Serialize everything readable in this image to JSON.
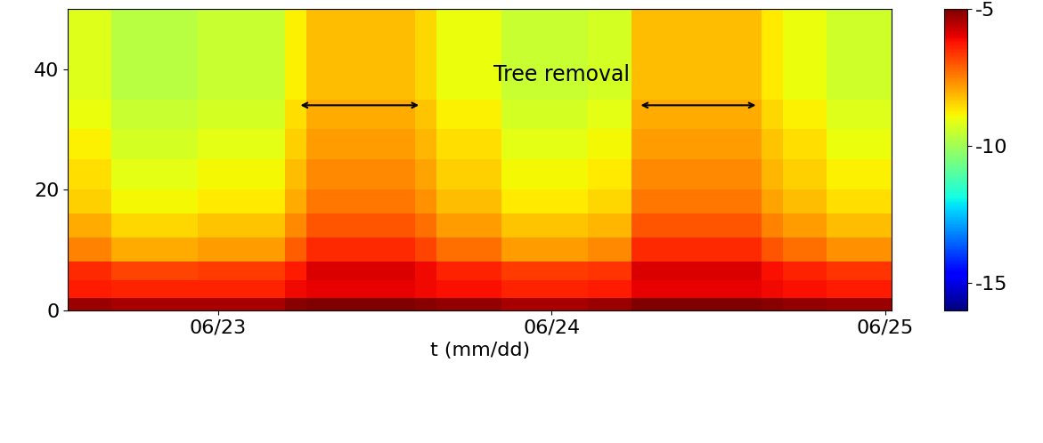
{
  "chart_data": {
    "type": "heatmap",
    "xlabel": "t (mm/dd)",
    "xlim": [
      22.55,
      25.02
    ],
    "xticks": [
      {
        "value": 23,
        "label": "06/23"
      },
      {
        "value": 24,
        "label": "06/24"
      },
      {
        "value": 25,
        "label": "06/25"
      }
    ],
    "ylim": [
      0,
      50
    ],
    "yticks": [
      0,
      20,
      40
    ],
    "x_edges": [
      22.55,
      22.615,
      22.68,
      22.745,
      22.81,
      22.875,
      22.94,
      23.005,
      23.07,
      23.135,
      23.2,
      23.265,
      23.33,
      23.395,
      23.46,
      23.525,
      23.59,
      23.655,
      23.72,
      23.785,
      23.85,
      23.915,
      23.98,
      24.045,
      24.11,
      24.175,
      24.24,
      24.305,
      24.37,
      24.435,
      24.5,
      24.565,
      24.63,
      24.695,
      24.76,
      24.825,
      24.89,
      24.955,
      25.02
    ],
    "y_edges": [
      0,
      2,
      5,
      8,
      12,
      16,
      20,
      25,
      30,
      35,
      40,
      45,
      50
    ],
    "cells": [
      [
        -5.3,
        -5.3,
        -5.4,
        -5.4,
        -5.4,
        -5.4,
        -5.4,
        -5.4,
        -5.4,
        -5.4,
        -5.1,
        -5.0,
        -5.0,
        -5.0,
        -5.0,
        -5.0,
        -5.1,
        -5.2,
        -5.2,
        -5.2,
        -5.4,
        -5.4,
        -5.4,
        -5.4,
        -5.3,
        -5.3,
        -5.0,
        -5.0,
        -5.0,
        -5.0,
        -5.0,
        -5.0,
        -5.1,
        -5.2,
        -5.2,
        -5.3,
        -5.3,
        -5.3
      ],
      [
        -6.3,
        -6.3,
        -6.4,
        -6.4,
        -6.4,
        -6.4,
        -6.4,
        -6.4,
        -6.4,
        -6.4,
        -6.1,
        -6.0,
        -6.0,
        -6.0,
        -6.0,
        -6.0,
        -6.1,
        -6.2,
        -6.2,
        -6.2,
        -6.4,
        -6.4,
        -6.4,
        -6.4,
        -6.3,
        -6.3,
        -6.0,
        -6.0,
        -6.0,
        -6.0,
        -6.0,
        -6.0,
        -6.1,
        -6.2,
        -6.2,
        -6.3,
        -6.3,
        -6.3
      ],
      [
        -6.5,
        -6.5,
        -6.8,
        -6.8,
        -6.8,
        -6.8,
        -6.7,
        -6.7,
        -6.7,
        -6.7,
        -6.3,
        -5.9,
        -5.9,
        -5.9,
        -5.9,
        -5.9,
        -6.1,
        -6.4,
        -6.4,
        -6.4,
        -6.7,
        -6.7,
        -6.7,
        -6.7,
        -6.6,
        -6.6,
        -5.9,
        -5.9,
        -5.9,
        -5.9,
        -5.9,
        -5.9,
        -6.2,
        -6.4,
        -6.4,
        -6.6,
        -6.6,
        -6.6
      ],
      [
        -7.5,
        -7.5,
        -8.0,
        -8.0,
        -8.0,
        -8.0,
        -7.8,
        -7.8,
        -7.8,
        -7.8,
        -7.1,
        -6.5,
        -6.5,
        -6.5,
        -6.5,
        -6.5,
        -6.8,
        -7.3,
        -7.3,
        -7.3,
        -7.8,
        -7.8,
        -7.8,
        -7.8,
        -7.6,
        -7.6,
        -6.5,
        -6.5,
        -6.5,
        -6.5,
        -6.5,
        -6.5,
        -7.0,
        -7.3,
        -7.3,
        -7.7,
        -7.7,
        -7.7
      ],
      [
        -8.0,
        -8.0,
        -8.5,
        -8.5,
        -8.5,
        -8.5,
        -8.3,
        -8.3,
        -8.3,
        -8.3,
        -7.6,
        -7.0,
        -7.0,
        -7.0,
        -7.0,
        -7.0,
        -7.3,
        -7.8,
        -7.8,
        -7.8,
        -8.3,
        -8.3,
        -8.3,
        -8.3,
        -8.1,
        -8.1,
        -7.0,
        -7.0,
        -7.0,
        -7.0,
        -7.0,
        -7.0,
        -7.5,
        -7.8,
        -7.8,
        -8.2,
        -8.2,
        -8.2
      ],
      [
        -8.4,
        -8.4,
        -8.9,
        -8.9,
        -8.9,
        -8.9,
        -8.7,
        -8.7,
        -8.7,
        -8.7,
        -8.0,
        -7.4,
        -7.4,
        -7.4,
        -7.4,
        -7.4,
        -7.7,
        -8.2,
        -8.2,
        -8.2,
        -8.7,
        -8.7,
        -8.7,
        -8.7,
        -8.5,
        -8.5,
        -7.4,
        -7.4,
        -7.4,
        -7.4,
        -7.4,
        -7.4,
        -7.9,
        -8.2,
        -8.2,
        -8.6,
        -8.6,
        -8.6
      ],
      [
        -8.6,
        -8.6,
        -9.1,
        -9.1,
        -9.1,
        -9.1,
        -8.9,
        -8.9,
        -8.9,
        -8.9,
        -8.2,
        -7.6,
        -7.6,
        -7.6,
        -7.6,
        -7.6,
        -7.9,
        -8.4,
        -8.4,
        -8.4,
        -8.9,
        -8.9,
        -8.9,
        -8.9,
        -8.7,
        -8.7,
        -7.6,
        -7.6,
        -7.6,
        -7.6,
        -7.6,
        -7.6,
        -8.1,
        -8.4,
        -8.4,
        -8.8,
        -8.8,
        -8.8
      ],
      [
        -8.8,
        -8.8,
        -9.3,
        -9.3,
        -9.3,
        -9.3,
        -9.1,
        -9.1,
        -9.1,
        -9.1,
        -8.4,
        -7.8,
        -7.8,
        -7.8,
        -7.8,
        -7.8,
        -8.1,
        -8.6,
        -8.6,
        -8.6,
        -9.1,
        -9.1,
        -9.1,
        -9.1,
        -8.9,
        -8.9,
        -7.8,
        -7.8,
        -7.8,
        -7.8,
        -7.8,
        -7.8,
        -8.3,
        -8.6,
        -8.6,
        -9.0,
        -9.0,
        -9.0
      ],
      [
        -9.0,
        -9.0,
        -9.5,
        -9.5,
        -9.5,
        -9.5,
        -9.3,
        -9.3,
        -9.3,
        -9.3,
        -8.6,
        -8.0,
        -8.0,
        -8.0,
        -8.0,
        -8.0,
        -8.3,
        -8.8,
        -8.8,
        -8.8,
        -9.3,
        -9.3,
        -9.3,
        -9.3,
        -9.1,
        -9.1,
        -8.0,
        -8.0,
        -8.0,
        -8.0,
        -8.0,
        -8.0,
        -8.5,
        -8.8,
        -8.8,
        -9.2,
        -9.2,
        -9.2
      ],
      [
        -9.2,
        -9.2,
        -9.7,
        -9.7,
        -9.7,
        -9.7,
        -9.5,
        -9.5,
        -9.5,
        -9.5,
        -8.8,
        -8.2,
        -8.2,
        -8.2,
        -8.2,
        -8.2,
        -8.5,
        -9.0,
        -9.0,
        -9.0,
        -9.5,
        -9.5,
        -9.5,
        -9.5,
        -9.3,
        -9.3,
        -8.2,
        -8.2,
        -8.2,
        -8.2,
        -8.2,
        -8.2,
        -8.7,
        -9.0,
        -9.0,
        -9.4,
        -9.4,
        -9.4
      ],
      [
        -9.2,
        -9.2,
        -9.7,
        -9.7,
        -9.7,
        -9.7,
        -9.5,
        -9.5,
        -9.5,
        -9.5,
        -8.8,
        -8.2,
        -8.2,
        -8.2,
        -8.2,
        -8.2,
        -8.5,
        -9.0,
        -9.0,
        -9.0,
        -9.5,
        -9.5,
        -9.5,
        -9.5,
        -9.3,
        -9.3,
        -8.2,
        -8.2,
        -8.2,
        -8.2,
        -8.2,
        -8.2,
        -8.7,
        -9.0,
        -9.0,
        -9.4,
        -9.4,
        -9.4
      ],
      [
        -9.2,
        -9.2,
        -9.7,
        -9.7,
        -9.7,
        -9.7,
        -9.5,
        -9.5,
        -9.5,
        -9.5,
        -8.8,
        -8.2,
        -8.2,
        -8.2,
        -8.2,
        -8.2,
        -8.5,
        -9.0,
        -9.0,
        -9.0,
        -9.5,
        -9.5,
        -9.5,
        -9.5,
        -9.3,
        -9.3,
        -8.2,
        -8.2,
        -8.2,
        -8.2,
        -8.2,
        -8.2,
        -8.7,
        -9.0,
        -9.0,
        -9.4,
        -9.4,
        -9.4
      ]
    ],
    "colorbar": {
      "range": [
        -16,
        -5
      ],
      "ticks": [
        -5,
        -10,
        -15
      ]
    },
    "annotations": [
      {
        "text": "Tree removal",
        "x": 24.03,
        "y": 39
      }
    ],
    "arrows": [
      {
        "x": [
          23.24,
          23.61
        ],
        "y": 34
      },
      {
        "x": [
          24.26,
          24.62
        ],
        "y": 34
      }
    ]
  }
}
